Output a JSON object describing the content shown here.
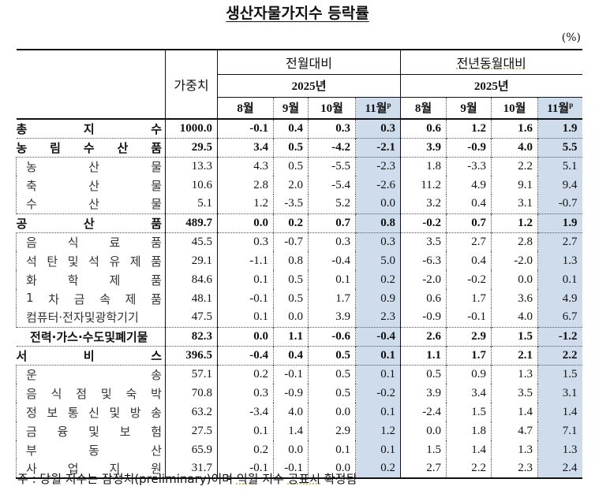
{
  "title": "생산자물가지수 등락률",
  "unit": "(%)",
  "header": {
    "weight_label": "가중치",
    "group_mom": "전월대비",
    "group_yoy": "전년동월대비",
    "year_mom": "2025년",
    "year_yoy": "2025년",
    "months": [
      "8월",
      "9월",
      "10월",
      "11월"
    ],
    "preliminary_mark": "p"
  },
  "rows": [
    {
      "label": "총지수",
      "chars": [
        "총",
        "지",
        "수"
      ],
      "type": "major",
      "weight": "1000.0",
      "mom": [
        "-0.1",
        "0.4",
        "0.3",
        "0.3"
      ],
      "yoy": [
        "0.6",
        "1.2",
        "1.6",
        "1.9"
      ]
    },
    {
      "label": "농림수산품",
      "chars": [
        "농",
        "림",
        "수",
        "산",
        "품"
      ],
      "type": "major",
      "weight": "29.5",
      "mom": [
        "3.4",
        "0.5",
        "-4.2",
        "-2.1"
      ],
      "yoy": [
        "3.9",
        "-0.9",
        "4.0",
        "5.5"
      ]
    },
    {
      "label": "농산물",
      "chars": [
        "농",
        "산",
        "물"
      ],
      "type": "sub",
      "weight": "13.3",
      "mom": [
        "4.3",
        "0.5",
        "-5.5",
        "-2.3"
      ],
      "yoy": [
        "1.8",
        "-3.3",
        "2.2",
        "5.1"
      ]
    },
    {
      "label": "축산물",
      "chars": [
        "축",
        "산",
        "물"
      ],
      "type": "sub",
      "weight": "10.6",
      "mom": [
        "2.8",
        "2.0",
        "-5.4",
        "-2.6"
      ],
      "yoy": [
        "11.2",
        "4.9",
        "9.1",
        "9.4"
      ]
    },
    {
      "label": "수산물",
      "chars": [
        "수",
        "산",
        "물"
      ],
      "type": "sub",
      "weight": "5.1",
      "mom": [
        "1.2",
        "-3.5",
        "5.2",
        "0.0"
      ],
      "yoy": [
        "3.2",
        "0.4",
        "3.1",
        "-0.7"
      ]
    },
    {
      "label": "공산품",
      "chars": [
        "공",
        "산",
        "품"
      ],
      "type": "major",
      "weight": "489.7",
      "mom": [
        "0.0",
        "0.2",
        "0.7",
        "0.8"
      ],
      "yoy": [
        "-0.2",
        "0.7",
        "1.2",
        "1.9"
      ]
    },
    {
      "label": "음식료품",
      "chars": [
        "음",
        "식",
        "료",
        "품"
      ],
      "type": "sub",
      "weight": "45.5",
      "mom": [
        "0.3",
        "-0.7",
        "0.3",
        "0.3"
      ],
      "yoy": [
        "3.5",
        "2.7",
        "2.8",
        "2.7"
      ]
    },
    {
      "label": "석탄및석유제품",
      "chars": [
        "석",
        "탄",
        "및",
        "석",
        "유",
        "제",
        "품"
      ],
      "type": "sub",
      "weight": "29.1",
      "mom": [
        "-1.1",
        "0.8",
        "-0.4",
        "5.0"
      ],
      "yoy": [
        "-6.3",
        "0.4",
        "-2.0",
        "1.3"
      ]
    },
    {
      "label": "화학제품",
      "chars": [
        "화",
        "학",
        "제",
        "품"
      ],
      "type": "sub",
      "weight": "84.6",
      "mom": [
        "0.1",
        "0.5",
        "0.1",
        "0.2"
      ],
      "yoy": [
        "-2.0",
        "-0.2",
        "0.0",
        "0.1"
      ]
    },
    {
      "label": "1차금속제품",
      "chars": [
        "1",
        "차",
        "금",
        "속",
        "제",
        "품"
      ],
      "type": "sub",
      "weight": "48.1",
      "mom": [
        "-0.1",
        "0.5",
        "1.7",
        "0.9"
      ],
      "yoy": [
        "0.6",
        "1.7",
        "3.6",
        "4.9"
      ]
    },
    {
      "label": "컴퓨터·전자및광학기기",
      "chars": [
        "컴퓨터·전자및광학기기"
      ],
      "type": "sub",
      "weight": "47.5",
      "mom": [
        "0.1",
        "0.0",
        "3.9",
        "2.3"
      ],
      "yoy": [
        "-0.9",
        "-0.1",
        "4.0",
        "6.7"
      ]
    },
    {
      "label": "전력·가스·수도및폐기물",
      "chars": [
        "전력·가스·수도및폐기물"
      ],
      "type": "major",
      "weight": "82.3",
      "mom": [
        "0.0",
        "1.1",
        "-0.6",
        "-0.4"
      ],
      "yoy": [
        "2.6",
        "2.9",
        "1.5",
        "-1.2"
      ]
    },
    {
      "label": "서비스",
      "chars": [
        "서",
        "비",
        "스"
      ],
      "type": "major",
      "weight": "396.5",
      "mom": [
        "-0.4",
        "0.4",
        "0.5",
        "0.1"
      ],
      "yoy": [
        "1.1",
        "1.7",
        "2.1",
        "2.2"
      ]
    },
    {
      "label": "운송",
      "chars": [
        "운",
        "송"
      ],
      "type": "sub",
      "weight": "57.1",
      "mom": [
        "0.2",
        "-0.1",
        "0.5",
        "0.1"
      ],
      "yoy": [
        "0.5",
        "0.9",
        "1.3",
        "1.5"
      ]
    },
    {
      "label": "음식점및숙박",
      "chars": [
        "음",
        "식",
        "점",
        "및",
        "숙",
        "박"
      ],
      "type": "sub",
      "weight": "70.8",
      "mom": [
        "0.3",
        "-0.9",
        "0.5",
        "-0.2"
      ],
      "yoy": [
        "3.9",
        "3.4",
        "3.5",
        "3.1"
      ]
    },
    {
      "label": "정보통신및방송",
      "chars": [
        "정",
        "보",
        "통",
        "신",
        "및",
        "방",
        "송"
      ],
      "type": "sub",
      "weight": "63.2",
      "mom": [
        "-3.4",
        "4.0",
        "0.0",
        "0.1"
      ],
      "yoy": [
        "-2.4",
        "1.5",
        "1.4",
        "1.4"
      ]
    },
    {
      "label": "금융및보험",
      "chars": [
        "금",
        "융",
        "및",
        "보",
        "험"
      ],
      "type": "sub",
      "weight": "27.5",
      "mom": [
        "0.1",
        "1.4",
        "2.9",
        "1.2"
      ],
      "yoy": [
        "0.0",
        "1.8",
        "4.7",
        "7.1"
      ]
    },
    {
      "label": "부동산",
      "chars": [
        "부",
        "동",
        "산"
      ],
      "type": "sub",
      "weight": "65.9",
      "mom": [
        "0.2",
        "0.0",
        "0.1",
        "0.1"
      ],
      "yoy": [
        "1.5",
        "1.4",
        "1.3",
        "1.3"
      ]
    },
    {
      "label": "사업지원",
      "chars": [
        "사",
        "업",
        "지",
        "원"
      ],
      "type": "sub",
      "weight": "31.7",
      "mom": [
        "-0.1",
        "-0.1",
        "0.0",
        "0.2"
      ],
      "yoy": [
        "2.7",
        "2.2",
        "2.3",
        "2.4"
      ]
    }
  ],
  "note": {
    "prefix": "주 : 당월 지수는 잠정치(preliminary)이며 ",
    "underlined": "익월",
    "middle": " 지수 ",
    "underlined2": "공표시",
    "suffix": " 확정됨"
  },
  "colors": {
    "highlight_column": "#cfdcec",
    "border": "#111111"
  }
}
